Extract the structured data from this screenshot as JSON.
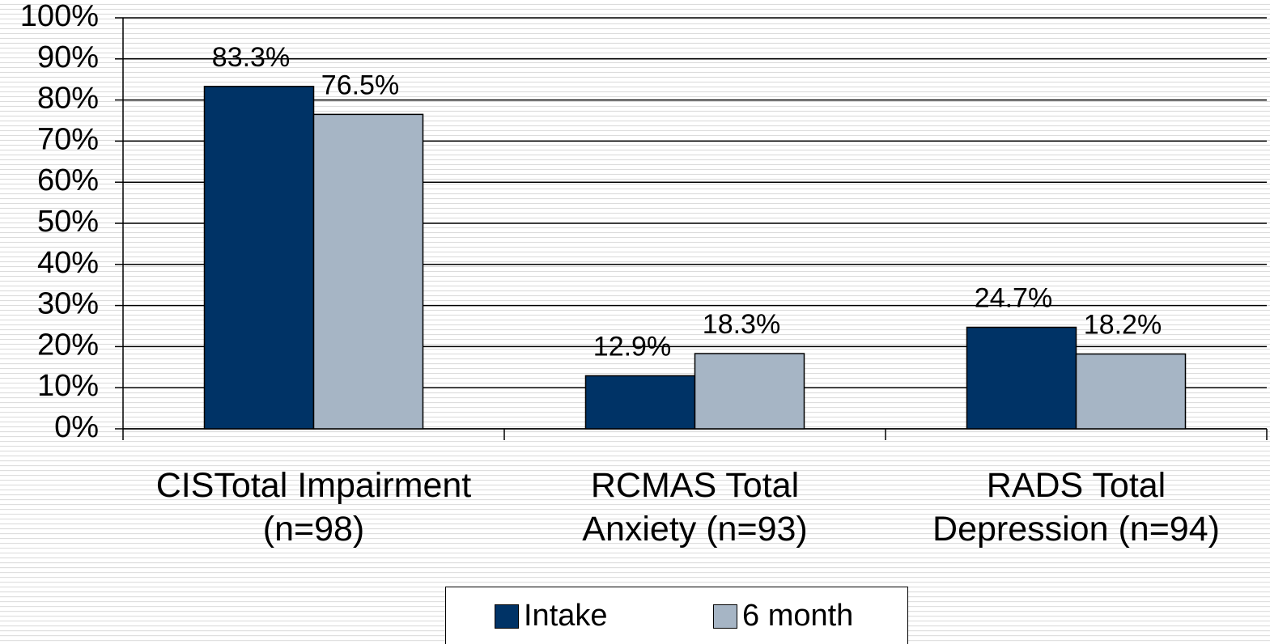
{
  "chart_data": {
    "type": "bar",
    "categories": [
      "CISTotal Impairment\n(n=98)",
      "RCMAS Total\nAnxiety (n=93)",
      "RADS Total\nDepression (n=94)"
    ],
    "series": [
      {
        "name": "Intake",
        "color": "#003366",
        "values": [
          83.3,
          12.9,
          24.7
        ],
        "value_labels": [
          "83.3%",
          "12.9%",
          "24.7%"
        ]
      },
      {
        "name": "6 month",
        "color": "#a6b5c5",
        "values": [
          76.5,
          18.3,
          18.2
        ],
        "value_labels": [
          "76.5%",
          "18.3%",
          "18.2%"
        ]
      }
    ],
    "ylim": [
      0,
      100
    ],
    "yticks": [
      {
        "value": 0,
        "label": "0%"
      },
      {
        "value": 10,
        "label": "10%"
      },
      {
        "value": 20,
        "label": "20%"
      },
      {
        "value": 30,
        "label": "30%"
      },
      {
        "value": 40,
        "label": "40%"
      },
      {
        "value": 50,
        "label": "50%"
      },
      {
        "value": 60,
        "label": "60%"
      },
      {
        "value": 70,
        "label": "70%"
      },
      {
        "value": 80,
        "label": "80%"
      },
      {
        "value": 90,
        "label": "90%"
      },
      {
        "value": 100,
        "label": "100%"
      }
    ],
    "grid": true,
    "legend": "bottom"
  }
}
